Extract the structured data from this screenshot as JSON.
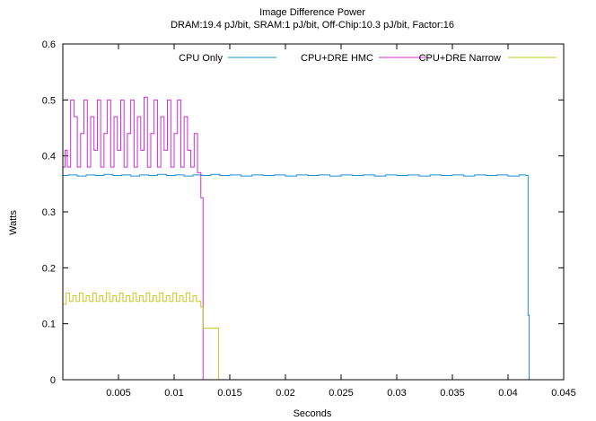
{
  "chart_data": {
    "type": "line",
    "title": "Image Difference Power",
    "subtitle": "DRAM:19.4 pJ/bit, SRAM:1 pJ/bit, Off-Chip:10.3 pJ/bit, Factor:16",
    "xlabel": "Seconds",
    "ylabel": "Watts",
    "xlim": [
      0,
      0.045
    ],
    "ylim": [
      0,
      0.6
    ],
    "x_ticks": [
      0.005,
      0.01,
      0.015,
      0.02,
      0.025,
      0.03,
      0.035,
      0.04,
      0.045
    ],
    "x_tick_labels": [
      "0.005",
      "0.01",
      "0.015",
      "0.02",
      "0.025",
      "0.03",
      "0.035",
      "0.04",
      "0.045"
    ],
    "y_ticks": [
      0,
      0.1,
      0.2,
      0.3,
      0.4,
      0.5,
      0.6
    ],
    "y_tick_labels": [
      "0",
      "0.1",
      "0.2",
      "0.3",
      "0.4",
      "0.5",
      "0.6"
    ],
    "grid": false,
    "legend_position": "top-right",
    "series": [
      {
        "name": "CPU Only",
        "color": "#1a8fd6",
        "style": "step",
        "x": [
          0,
          0.0005,
          0.0013,
          0.0021,
          0.0029,
          0.0037,
          0.0045,
          0.0053,
          0.0061,
          0.0069,
          0.0077,
          0.0085,
          0.0093,
          0.0101,
          0.0109,
          0.0117,
          0.0125,
          0.0133,
          0.0141,
          0.015,
          0.016,
          0.017,
          0.018,
          0.019,
          0.02,
          0.021,
          0.022,
          0.023,
          0.024,
          0.025,
          0.026,
          0.027,
          0.028,
          0.029,
          0.03,
          0.031,
          0.032,
          0.033,
          0.034,
          0.035,
          0.036,
          0.037,
          0.038,
          0.039,
          0.04,
          0.041,
          0.0416,
          0.0418,
          0.0419
        ],
        "y": [
          0.365,
          0.366,
          0.364,
          0.366,
          0.365,
          0.367,
          0.365,
          0.366,
          0.364,
          0.366,
          0.365,
          0.367,
          0.365,
          0.366,
          0.364,
          0.366,
          0.365,
          0.367,
          0.365,
          0.366,
          0.364,
          0.366,
          0.365,
          0.366,
          0.364,
          0.366,
          0.365,
          0.366,
          0.364,
          0.366,
          0.365,
          0.366,
          0.364,
          0.366,
          0.365,
          0.366,
          0.364,
          0.366,
          0.365,
          0.366,
          0.364,
          0.366,
          0.365,
          0.366,
          0.364,
          0.366,
          0.365,
          0.115,
          0
        ]
      },
      {
        "name": "CPU+DRE HMC",
        "color": "#cc2fd6",
        "style": "step",
        "x": [
          0,
          0.0002,
          0.0004,
          0.0007,
          0.001,
          0.0013,
          0.0016,
          0.0019,
          0.0022,
          0.0025,
          0.0028,
          0.0031,
          0.0034,
          0.0037,
          0.004,
          0.0043,
          0.0046,
          0.0049,
          0.0052,
          0.0055,
          0.0058,
          0.0061,
          0.0064,
          0.0067,
          0.007,
          0.0073,
          0.0076,
          0.0079,
          0.0082,
          0.0085,
          0.0088,
          0.0091,
          0.0094,
          0.0097,
          0.01,
          0.0103,
          0.0106,
          0.0109,
          0.0112,
          0.0115,
          0.0118,
          0.0121,
          0.0124,
          0.0126
        ],
        "y": [
          0.38,
          0.41,
          0.38,
          0.5,
          0.47,
          0.38,
          0.44,
          0.5,
          0.38,
          0.47,
          0.41,
          0.5,
          0.38,
          0.44,
          0.5,
          0.38,
          0.47,
          0.41,
          0.5,
          0.38,
          0.44,
          0.5,
          0.38,
          0.47,
          0.41,
          0.505,
          0.38,
          0.44,
          0.5,
          0.38,
          0.47,
          0.41,
          0.5,
          0.38,
          0.44,
          0.5,
          0.38,
          0.47,
          0.41,
          0.38,
          0.44,
          0.37,
          0.325,
          0
        ]
      },
      {
        "name": "CPU+DRE Narrow",
        "color": "#c8c81e",
        "style": "step",
        "x": [
          0,
          0.0003,
          0.0006,
          0.0009,
          0.0012,
          0.0015,
          0.0018,
          0.0021,
          0.0024,
          0.0027,
          0.003,
          0.0033,
          0.0036,
          0.0039,
          0.0042,
          0.0045,
          0.0048,
          0.0051,
          0.0054,
          0.0057,
          0.006,
          0.0063,
          0.0066,
          0.0069,
          0.0072,
          0.0075,
          0.0078,
          0.0081,
          0.0084,
          0.0087,
          0.009,
          0.0093,
          0.0096,
          0.0099,
          0.0102,
          0.0105,
          0.0108,
          0.0111,
          0.0114,
          0.0117,
          0.012,
          0.0124,
          0.0126,
          0.0138,
          0.014
        ],
        "y": [
          0.135,
          0.155,
          0.14,
          0.15,
          0.14,
          0.155,
          0.14,
          0.15,
          0.14,
          0.155,
          0.14,
          0.15,
          0.14,
          0.155,
          0.14,
          0.15,
          0.14,
          0.155,
          0.14,
          0.15,
          0.14,
          0.155,
          0.14,
          0.15,
          0.14,
          0.155,
          0.14,
          0.15,
          0.14,
          0.155,
          0.14,
          0.15,
          0.14,
          0.155,
          0.14,
          0.15,
          0.14,
          0.155,
          0.14,
          0.15,
          0.14,
          0.13,
          0.092,
          0.092,
          0
        ]
      }
    ]
  }
}
